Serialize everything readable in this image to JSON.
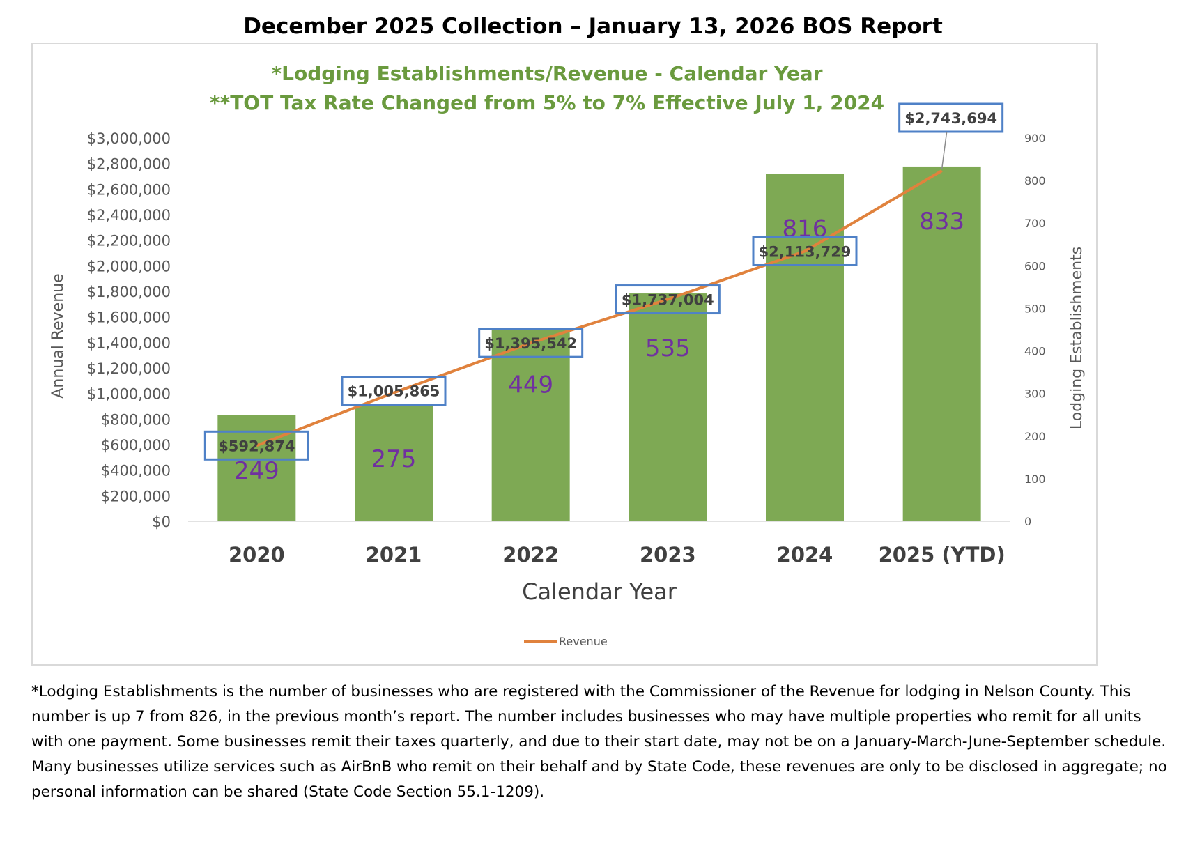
{
  "report_title": "December 2025 Collection – January 13, 2026 BOS Report",
  "footnote": "*Lodging Establishments is the number of businesses who are registered with the Commissioner of the Revenue for lodging in Nelson County. This number is up 7 from 826, in the previous month’s report. The number includes businesses who may have multiple properties who remit for all units with one payment. Some businesses remit their taxes quarterly, and due to their start date, may not be on a January-March-June-September schedule. Many businesses utilize services such as AirBnB who remit on their behalf and by State Code, these revenues are only to be disclosed in aggregate; no personal information can be shared (State Code Section 55.1-1209).",
  "chart_data": {
    "type": "bar",
    "title": "*Lodging Establishments/Revenue - Calendar Year",
    "subtitle": "**TOT Tax Rate Changed from 5% to 7% Effective July 1, 2024",
    "categories": [
      "2020",
      "2021",
      "2022",
      "2023",
      "2024",
      "2025 (YTD)"
    ],
    "xlabel": "Calendar Year",
    "ylabel": "Annual Revenue",
    "y2label": "Lodging Establishments",
    "ylim": [
      0,
      3000000
    ],
    "y2lim": [
      0,
      900
    ],
    "y_ticks": [
      0,
      200000,
      400000,
      600000,
      800000,
      1000000,
      1200000,
      1400000,
      1600000,
      1800000,
      2000000,
      2200000,
      2400000,
      2600000,
      2800000,
      3000000
    ],
    "y_tick_labels": [
      "$0",
      "$200,000",
      "$400,000",
      "$600,000",
      "$800,000",
      "$1,000,000",
      "$1,200,000",
      "$1,400,000",
      "$1,600,000",
      "$1,800,000",
      "$2,000,000",
      "$2,200,000",
      "$2,400,000",
      "$2,600,000",
      "$2,800,000",
      "$3,000,000"
    ],
    "y2_ticks": [
      0,
      100,
      200,
      300,
      400,
      500,
      600,
      700,
      800,
      900
    ],
    "y2_tick_labels": [
      "0",
      "100",
      "200",
      "300",
      "400",
      "500",
      "600",
      "700",
      "800",
      "900"
    ],
    "series": [
      {
        "name": "Lodging Establishments",
        "type": "bar",
        "axis": "right",
        "values": [
          249,
          275,
          449,
          535,
          816,
          833
        ],
        "labels": [
          "249",
          "275",
          "449",
          "535",
          "816",
          "833"
        ],
        "color": "#7ea954",
        "label_color": "#7030a0"
      },
      {
        "name": "Revenue",
        "type": "line",
        "axis": "left",
        "values": [
          592874,
          1005865,
          1395542,
          1737004,
          2113729,
          2743694
        ],
        "labels": [
          "$592,874",
          "$1,005,865",
          "$1,395,542",
          "$1,737,004",
          "$2,113,729",
          "$2,743,694"
        ],
        "color": "#e0823d",
        "label_box_color": "#4f81c7"
      }
    ],
    "legend": {
      "position": "bottom-center",
      "entries": [
        "Revenue"
      ]
    },
    "grid": false,
    "title_color": "#6a9a3e"
  }
}
